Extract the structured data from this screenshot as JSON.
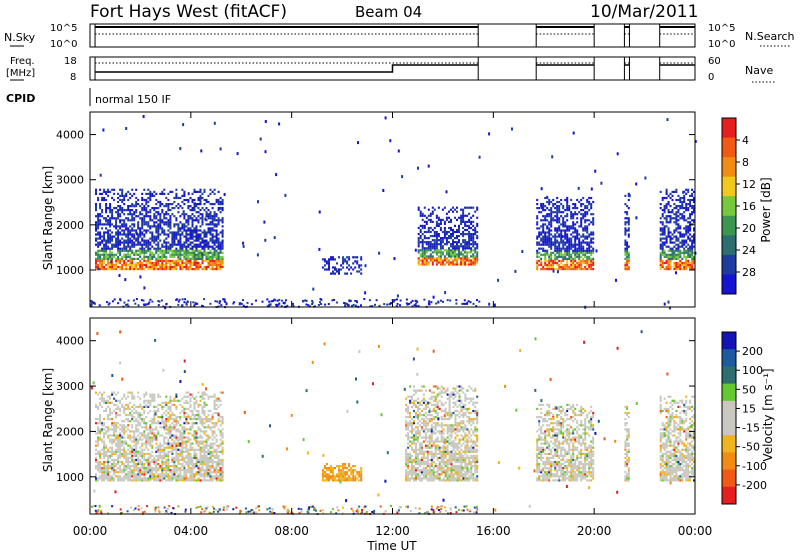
{
  "header": {
    "radar": "Fort Hays West (fitACF)",
    "beam": "Beam 04",
    "date": "10/Mar/2011"
  },
  "status_panels": {
    "nsky_label": "N.Sky",
    "nsky_ticks": [
      "10^5",
      "10^0"
    ],
    "nsearch_label": "N.Search",
    "nsearch_ticks": [
      "10^5",
      "10^0"
    ],
    "freq_label_1": "Freq.",
    "freq_label_2": "[MHz]",
    "freq_ticks": [
      "18",
      "8"
    ],
    "nave_label": "Nave",
    "nave_ticks": [
      "60",
      "0"
    ],
    "cpid_label": "CPID",
    "cpid_text": "normal 150 IF"
  },
  "colors": {
    "power": [
      "#1414d2",
      "#1e3ca0",
      "#2d6e6e",
      "#3c9650",
      "#78c83c",
      "#f0c81e",
      "#f08c14",
      "#f05a14",
      "#e61e1e"
    ],
    "velocity": [
      "#e61e1e",
      "#f05a14",
      "#f08c14",
      "#f0b41e",
      "#c8c8c0",
      "#c8c8c0",
      "#64c832",
      "#2d6e6e",
      "#1e5aa0",
      "#1414b4"
    ]
  },
  "chart_data": [
    {
      "type": "heatmap",
      "name": "power",
      "title": "",
      "xlabel": "Time UT",
      "ylabel": "Slant Range [km]",
      "x_ticks": [
        "00:00",
        "04:00",
        "08:00",
        "12:00",
        "16:00",
        "20:00",
        "00:00"
      ],
      "xlim_hours": [
        0,
        24
      ],
      "y_ticks": [
        "1000",
        "2000",
        "3000",
        "4000"
      ],
      "ylim_km": [
        180,
        4500
      ],
      "colorbar_label": "Power [dB]",
      "colorbar_ticks": [
        "4",
        "8",
        "12",
        "16",
        "20",
        "24",
        "28"
      ],
      "colorbar_range": [
        0,
        30
      ],
      "regions": [
        {
          "t": [
            0.2,
            5.3
          ],
          "r": [
            1000,
            2800
          ],
          "level": "strong-bottom"
        },
        {
          "t": [
            9.2,
            10.8
          ],
          "r": [
            900,
            1300
          ],
          "level": "weak"
        },
        {
          "t": [
            13.0,
            15.4
          ],
          "r": [
            1100,
            2400
          ],
          "level": "strong-bottom"
        },
        {
          "t": [
            17.7,
            20.0
          ],
          "r": [
            1000,
            2600
          ],
          "level": "strong-bottom"
        },
        {
          "t": [
            21.2,
            21.4
          ],
          "r": [
            1000,
            2700
          ],
          "level": "strong-bottom"
        },
        {
          "t": [
            22.6,
            24.0
          ],
          "r": [
            1000,
            2800
          ],
          "level": "strong-bottom"
        }
      ]
    },
    {
      "type": "heatmap",
      "name": "velocity",
      "title": "",
      "xlabel": "Time UT",
      "ylabel": "Slant Range [km]",
      "x_ticks": [
        "00:00",
        "04:00",
        "08:00",
        "12:00",
        "16:00",
        "20:00",
        "00:00"
      ],
      "xlim_hours": [
        0,
        24
      ],
      "y_ticks": [
        "1000",
        "2000",
        "3000",
        "4000"
      ],
      "ylim_km": [
        180,
        4500
      ],
      "colorbar_label": "Velocity [m s⁻¹]",
      "colorbar_ticks": [
        "200",
        "100",
        "50",
        "15",
        "-15",
        "-50",
        "-100",
        "-200"
      ],
      "colorbar_range": [
        -250,
        250
      ],
      "regions": [
        {
          "t": [
            0.2,
            5.3
          ],
          "r": [
            900,
            2900
          ],
          "level": "mostly-low"
        },
        {
          "t": [
            9.2,
            10.8
          ],
          "r": [
            900,
            1300
          ],
          "level": "negative"
        },
        {
          "t": [
            12.5,
            15.4
          ],
          "r": [
            900,
            3000
          ],
          "level": "mostly-low"
        },
        {
          "t": [
            17.7,
            20.0
          ],
          "r": [
            900,
            2600
          ],
          "level": "mostly-low"
        },
        {
          "t": [
            21.2,
            21.4
          ],
          "r": [
            900,
            2600
          ],
          "level": "mostly-low"
        },
        {
          "t": [
            22.6,
            24.0
          ],
          "r": [
            900,
            2800
          ],
          "level": "mostly-low"
        }
      ]
    }
  ]
}
